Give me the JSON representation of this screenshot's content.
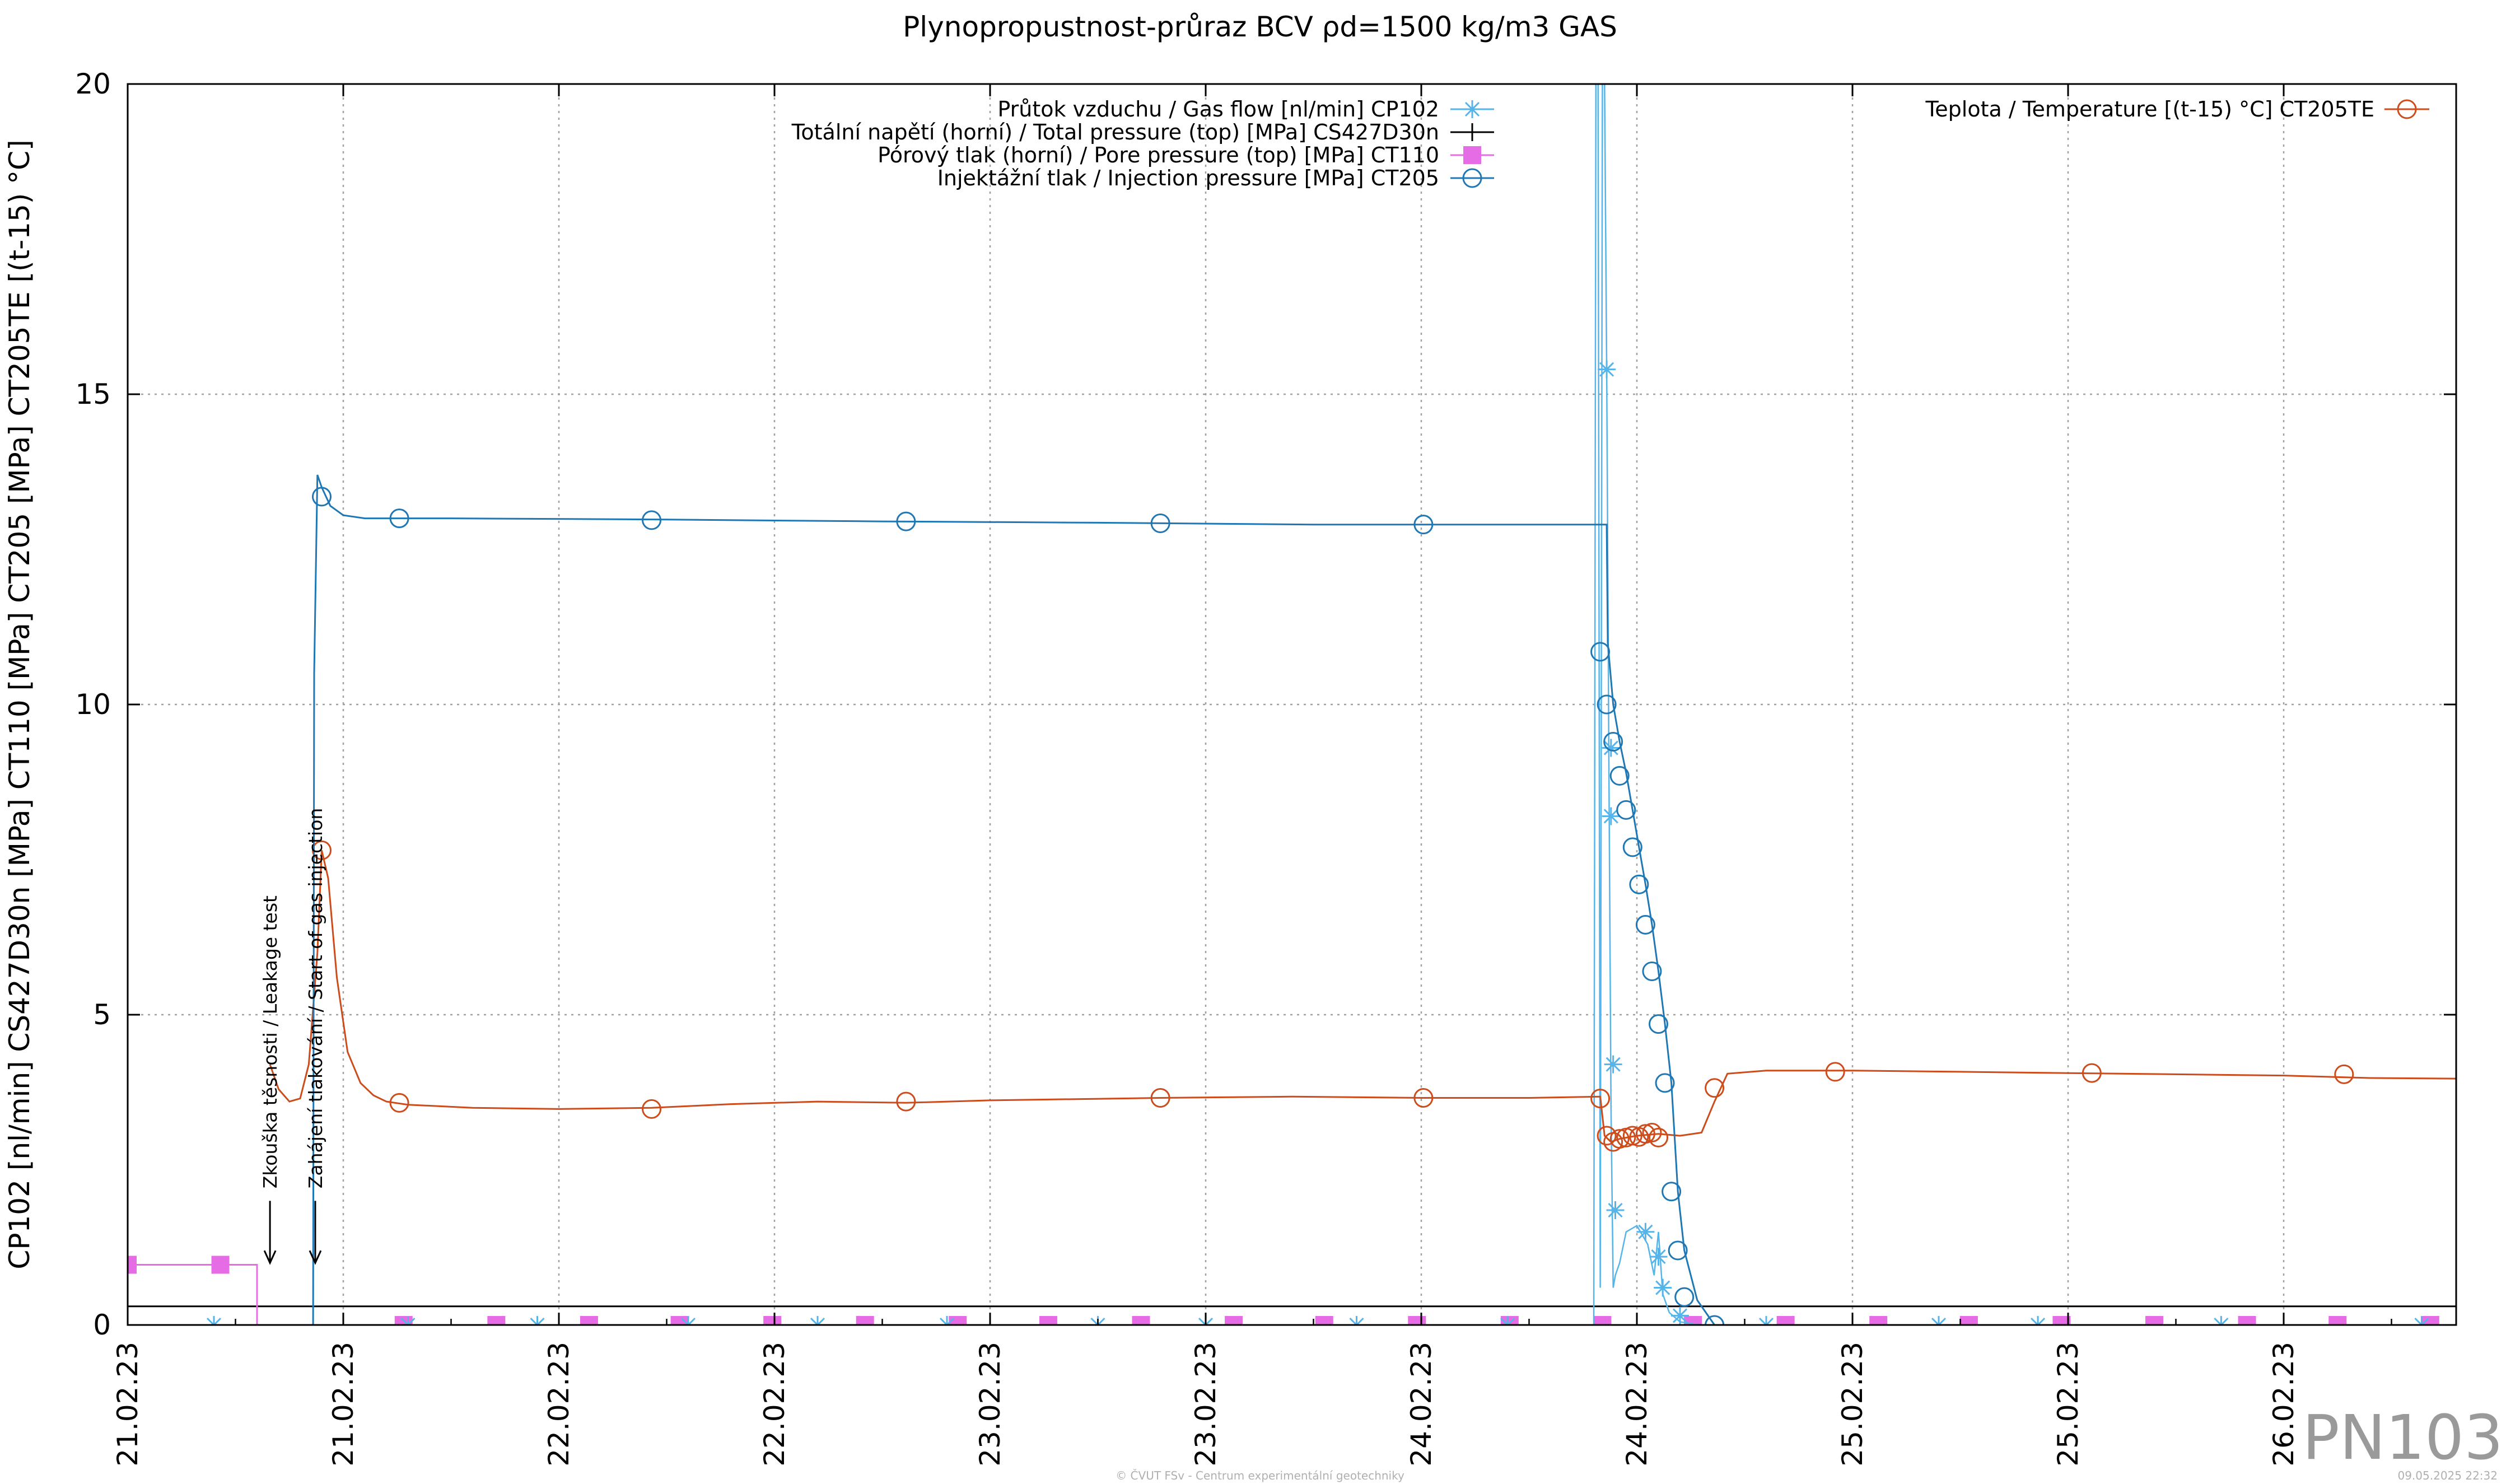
{
  "chart_data": {
    "type": "line",
    "title": "Plynopropustnost-průraz BCV ρd=1500 kg/m3 GAS",
    "ylabel": "CP102 [nl/min] CS427D30n [MPa] CT110 [MPa] CT205 [MPa] CT205TE [(t-15) °C]",
    "xlabel": "",
    "ylim": [
      0,
      20
    ],
    "yticks": [
      "0",
      "5",
      "10",
      "15",
      "20"
    ],
    "xlim": [
      0,
      10.8
    ],
    "xtick_labels": [
      "21.02.23",
      "21.02.23",
      "22.02.23",
      "22.02.23",
      "23.02.23",
      "23.02.23",
      "24.02.23",
      "24.02.23",
      "25.02.23",
      "25.02.23",
      "26.02.23"
    ],
    "grid": true,
    "legend": {
      "left_entries": [
        "Průtok vzduchu / Gas flow [nl/min] CP102",
        "Totální napětí (horní) / Total pressure (top) [MPa] CS427D30n",
        "Pórový tlak (horní) / Pore pressure (top) [MPa] CT110",
        "Injektážní tlak / Injection pressure [MPa] CT205"
      ],
      "right_entries": [
        "Teplota / Temperature [(t-15) °C] CT205TE"
      ],
      "placement": "top"
    },
    "annotations": [
      "Zkouška těsnosti / Leakage test",
      "Zahájení tlakování / Start of gas injection"
    ],
    "series": [
      {
        "name": "Injektážní tlak / Injection pressure [MPa] CT205",
        "color": "#1f77b4",
        "marker": "circle",
        "x": [
          0,
          0.86,
          0.865,
          0.88,
          0.9,
          0.94,
          1.0,
          1.1,
          1.25,
          1.5,
          2.5,
          3.5,
          4.5,
          5.5,
          6.5,
          6.86,
          6.865,
          6.87,
          6.89,
          6.92,
          6.95,
          6.98,
          7.01,
          7.04,
          7.07,
          7.1,
          7.13,
          7.16,
          7.19,
          7.22,
          7.28,
          7.36,
          7.5,
          10.8
        ],
        "y": [
          0,
          0,
          10.5,
          13.7,
          13.5,
          13.2,
          13.05,
          13.0,
          13.0,
          13.0,
          12.98,
          12.95,
          12.93,
          12.9,
          12.9,
          12.9,
          11.0,
          10.8,
          10.0,
          9.4,
          8.9,
          8.3,
          7.7,
          7.1,
          6.45,
          5.7,
          4.85,
          3.9,
          2.15,
          1.2,
          0.4,
          0.0,
          0.0,
          0.0
        ],
        "marker_x": [
          0.9,
          1.26,
          2.43,
          3.61,
          4.79,
          6.01,
          6.83,
          6.86,
          6.89,
          6.92,
          6.95,
          6.98,
          7.01,
          7.04,
          7.07,
          7.1,
          7.13,
          7.16,
          7.19,
          7.22,
          7.36
        ],
        "marker_y": [
          13.35,
          13.0,
          12.97,
          12.95,
          12.92,
          12.9,
          10.85,
          10.0,
          9.4,
          8.85,
          8.3,
          7.7,
          7.1,
          6.45,
          5.7,
          4.85,
          3.9,
          2.15,
          1.2,
          0.45,
          0.0
        ]
      },
      {
        "name": "Teplota / Temperature [(t-15) °C] CT205TE",
        "color": "#cc4c1b",
        "marker": "circle",
        "x": [
          0.66,
          0.7,
          0.75,
          0.8,
          0.84,
          0.88,
          0.9,
          0.93,
          0.97,
          1.02,
          1.08,
          1.14,
          1.2,
          1.3,
          1.6,
          2.0,
          2.43,
          2.8,
          3.2,
          3.61,
          4.0,
          4.4,
          4.79,
          5.4,
          6.01,
          6.5,
          6.83,
          6.85,
          6.88,
          6.92,
          7.0,
          7.1,
          7.2,
          7.3,
          7.36,
          7.42,
          7.6,
          8.0,
          8.5,
          9.0,
          9.5,
          10.0,
          10.4,
          10.8
        ],
        "y": [
          4.2,
          3.8,
          3.6,
          3.65,
          4.2,
          6.0,
          7.65,
          7.2,
          5.6,
          4.4,
          3.9,
          3.7,
          3.6,
          3.55,
          3.5,
          3.48,
          3.5,
          3.56,
          3.6,
          3.58,
          3.62,
          3.64,
          3.66,
          3.68,
          3.66,
          3.66,
          3.68,
          3.05,
          2.95,
          3.0,
          3.05,
          3.08,
          3.05,
          3.1,
          3.6,
          4.05,
          4.1,
          4.1,
          4.08,
          4.06,
          4.04,
          4.02,
          3.98,
          3.97
        ],
        "marker_x": [
          0.9,
          1.26,
          2.43,
          3.61,
          4.79,
          6.01,
          6.83,
          6.86,
          6.89,
          6.92,
          6.95,
          6.98,
          7.01,
          7.04,
          7.07,
          7.1,
          7.36,
          7.92,
          9.11,
          10.28,
          11.49
        ],
        "marker_y": [
          7.65,
          3.58,
          3.48,
          3.6,
          3.66,
          3.66,
          3.65,
          3.05,
          2.95,
          3.0,
          3.02,
          3.05,
          3.03,
          3.08,
          3.1,
          3.02,
          3.82,
          4.08,
          4.06,
          4.04,
          3.96
        ]
      },
      {
        "name": "Průtok vzduchu / Gas flow [nl/min] CP102",
        "color": "#56b4e9",
        "marker": "asterisk",
        "x": [
          0,
          6.8,
          6.81,
          6.82,
          6.83,
          6.84,
          6.85,
          6.86,
          6.87,
          6.88,
          6.89,
          6.9,
          6.92,
          6.95,
          7.0,
          7.05,
          7.08,
          7.1,
          7.12,
          7.15,
          7.2,
          7.3,
          10.8
        ],
        "y": [
          0,
          0,
          20,
          20,
          0.6,
          20,
          20,
          15.4,
          9.2,
          3.5,
          0.6,
          0.8,
          1.0,
          1.5,
          1.6,
          1.3,
          0.8,
          1.5,
          0.5,
          0.2,
          0.05,
          0,
          0
        ],
        "marker_x": [
          0.4,
          1.3,
          1.9,
          2.6,
          3.2,
          3.8,
          4.5,
          5.0,
          5.7,
          6.4,
          6.86,
          6.88,
          6.88,
          6.89,
          6.9,
          7.04,
          7.1,
          7.12,
          7.2,
          7.6,
          8.4,
          8.86,
          9.71,
          10.64
        ],
        "marker_y": [
          0,
          0,
          0,
          0,
          0,
          0,
          0,
          0,
          0,
          0,
          15.4,
          9.3,
          8.2,
          4.2,
          1.85,
          1.5,
          1.1,
          0.6,
          0.15,
          0,
          0,
          0,
          0,
          0
        ]
      },
      {
        "name": "Pórový tlak (horní) / Pore pressure (top) [MPa] CT110",
        "color": "#e66ce6",
        "marker": "square",
        "x": [
          0,
          0.6,
          0.6,
          10.8
        ],
        "y": [
          0.97,
          0.97,
          0,
          0
        ],
        "marker_x": [
          0,
          0.43,
          1.28,
          1.71,
          2.14,
          2.56,
          2.99,
          3.42,
          3.85,
          4.27,
          4.7,
          5.13,
          5.55,
          5.98,
          6.41,
          6.84,
          7.26,
          7.69,
          8.12,
          8.54,
          8.97,
          9.4,
          9.83,
          10.25,
          10.68,
          11.1
        ],
        "marker_y": [
          0.97,
          0.97,
          0,
          0,
          0,
          0,
          0,
          0,
          0,
          0,
          0,
          0,
          0,
          0,
          0,
          0,
          0,
          0,
          0,
          0,
          0,
          0,
          0,
          0,
          0,
          0
        ]
      },
      {
        "name": "Totální napětí (horní) / Total pressure (top) [MPa] CS427D30n",
        "color": "#000000",
        "marker": "plus",
        "x": [
          0,
          10.8
        ],
        "y": [
          0.3,
          0.3
        ],
        "marker_x": [],
        "marker_y": []
      }
    ]
  },
  "watermark": "PN103",
  "footer_left": "© ČVUT FSv - Centrum experimentální geotechniky",
  "footer_right": "09.05.2025 22:32"
}
